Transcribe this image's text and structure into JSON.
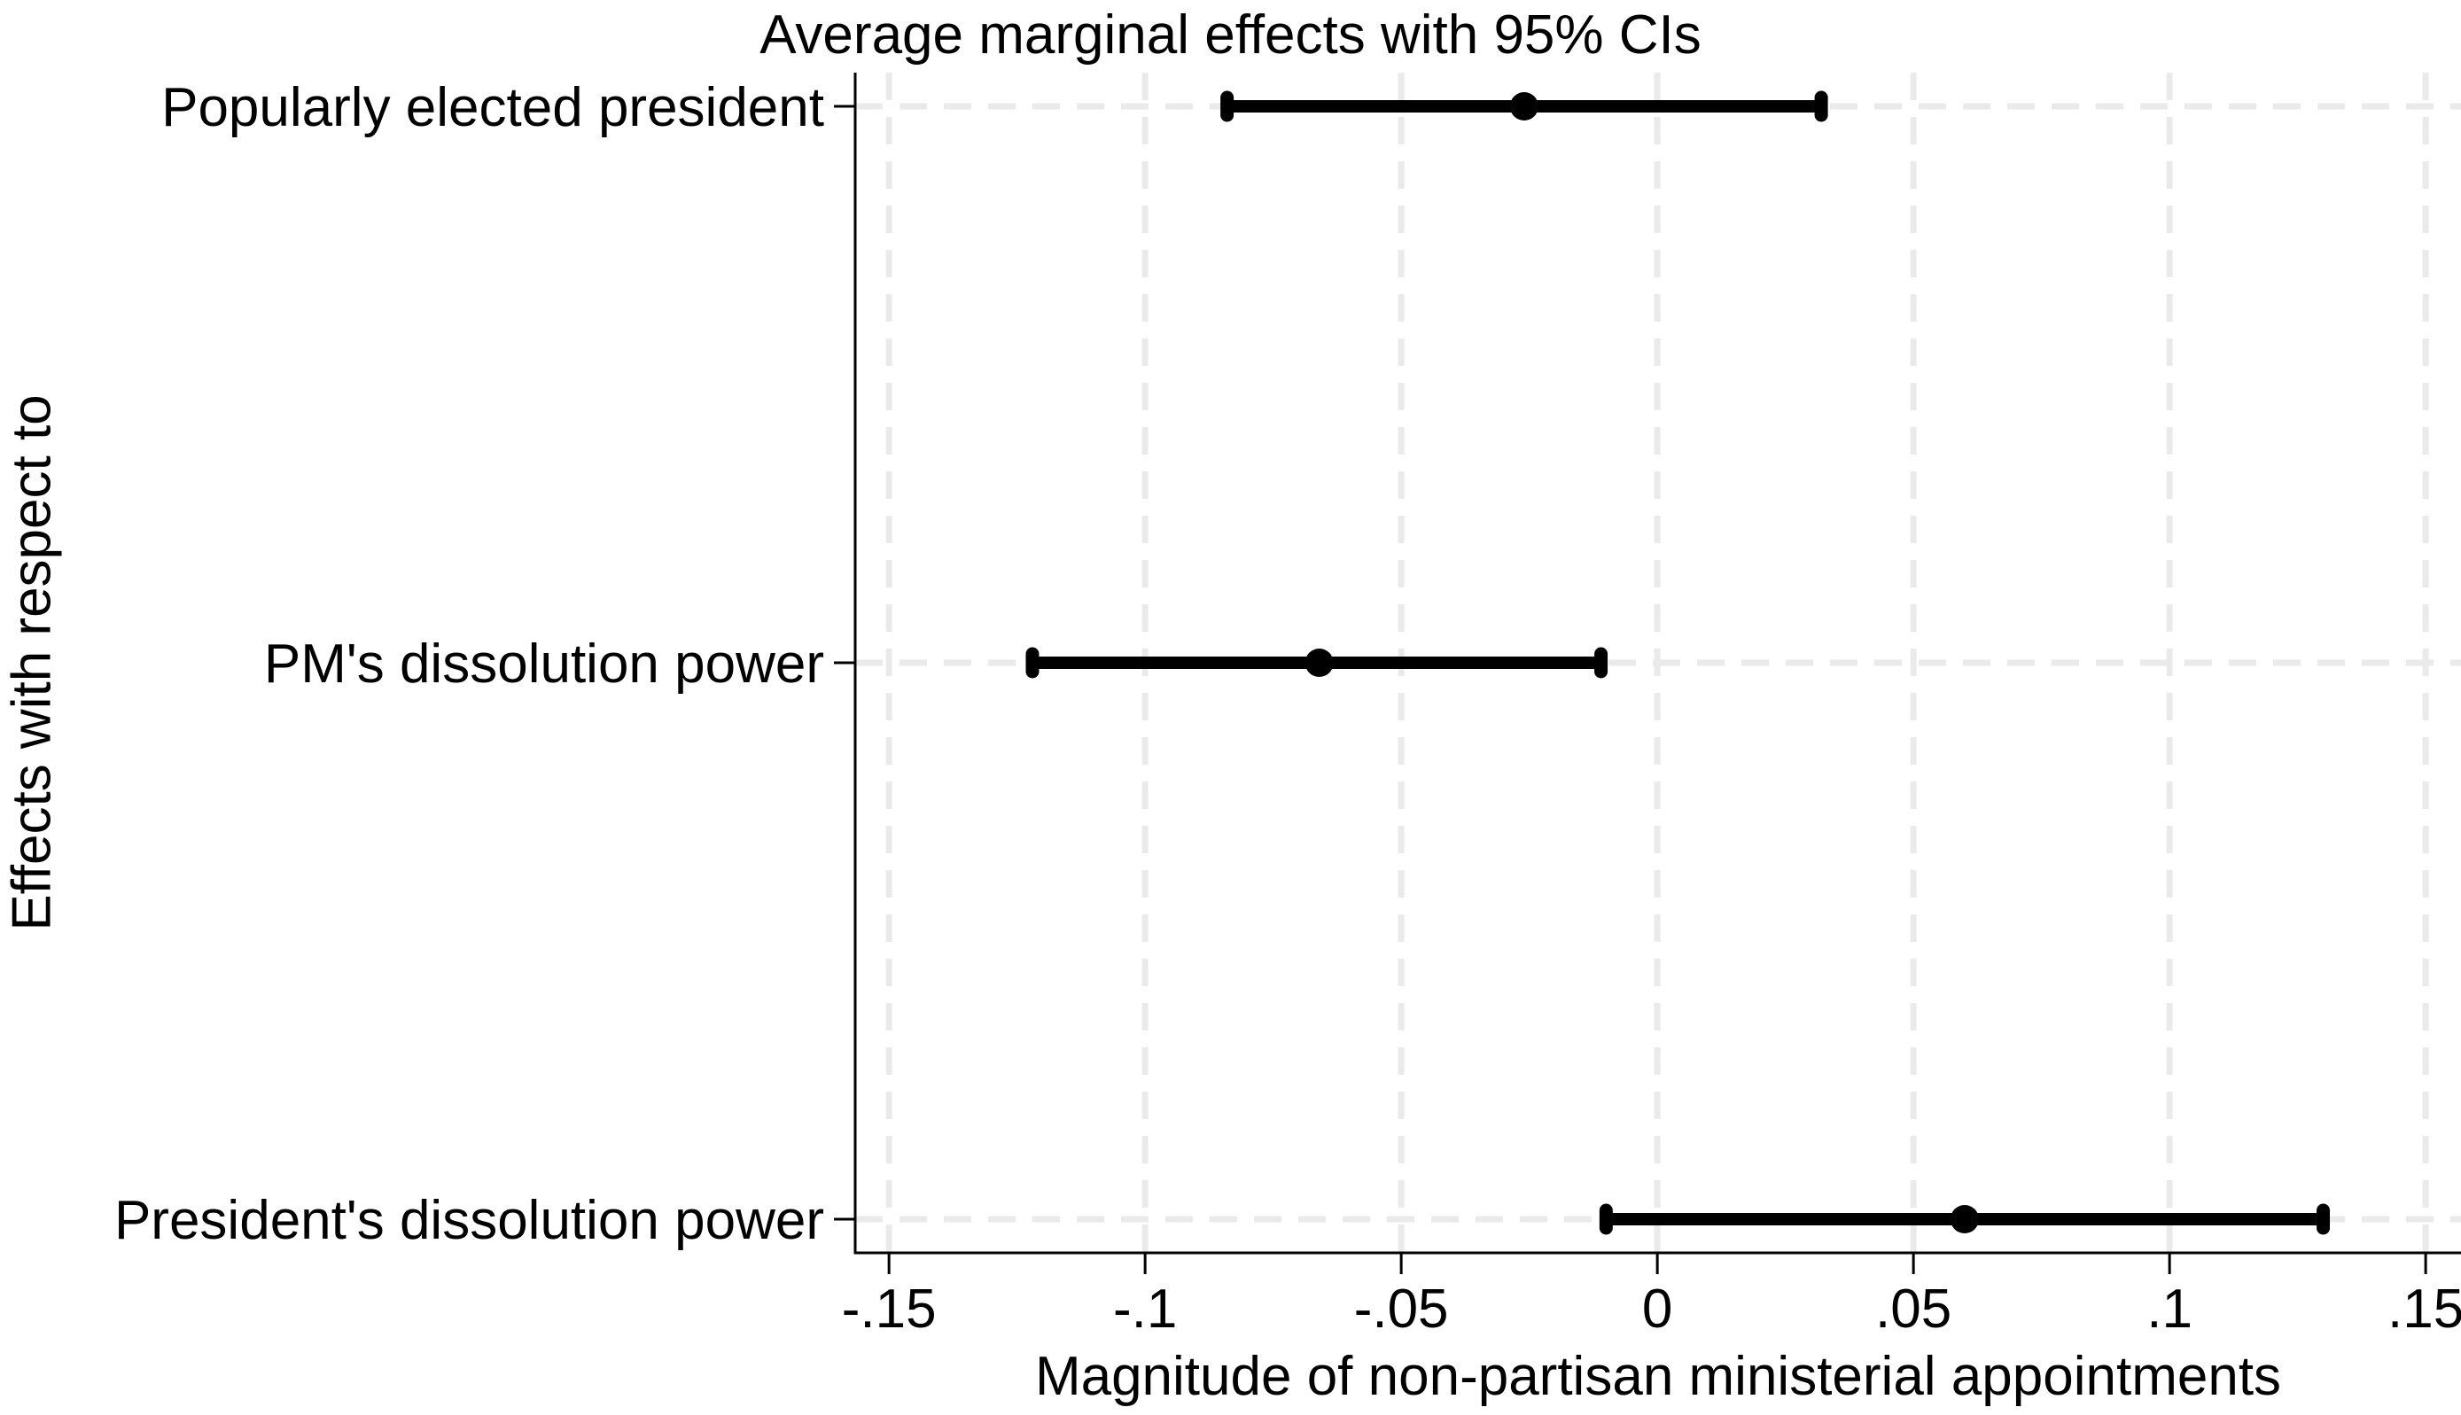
{
  "figure": {
    "title": "Average marginal effects with 95% CIs",
    "x_axis_title": "Magnitude of non-partisan ministerial appointments",
    "y_axis_title": "Effects with respect to"
  },
  "chart_data": {
    "type": "scatter",
    "subtype": "coefficient-plot-with-95pct-error-bars",
    "title": "Average marginal effects with 95% CIs",
    "xlabel": "Magnitude of non-partisan ministerial appointments",
    "ylabel": "Effects with respect to",
    "categories": [
      "Popularly elected president",
      "PM's dissolution power",
      "President's dissolution power"
    ],
    "series": [
      {
        "name": "Average marginal effect",
        "points": [
          {
            "category": "Popularly elected president",
            "estimate": -0.026,
            "ci_low": -0.084,
            "ci_high": 0.032
          },
          {
            "category": "PM's dissolution power",
            "estimate": -0.066,
            "ci_low": -0.122,
            "ci_high": -0.011
          },
          {
            "category": "President's dissolution power",
            "estimate": 0.06,
            "ci_low": -0.01,
            "ci_high": 0.13
          }
        ]
      }
    ],
    "x_ticks": [
      {
        "value": -0.15,
        "label": "-.15"
      },
      {
        "value": -0.1,
        "label": "-.1"
      },
      {
        "value": -0.05,
        "label": "-.05"
      },
      {
        "value": 0,
        "label": "0"
      },
      {
        "value": 0.05,
        "label": ".05"
      },
      {
        "value": 0.1,
        "label": ".1"
      },
      {
        "value": 0.15,
        "label": ".15"
      }
    ],
    "xlim": [
      -0.1566,
      0.1569
    ],
    "grid": true,
    "grid_style": "dashed",
    "legend": "none",
    "colors": {
      "marker": "#000000",
      "axis": "#000000",
      "gridline": "#eaeaea",
      "background": "#ffffff",
      "text": "#000000"
    }
  }
}
